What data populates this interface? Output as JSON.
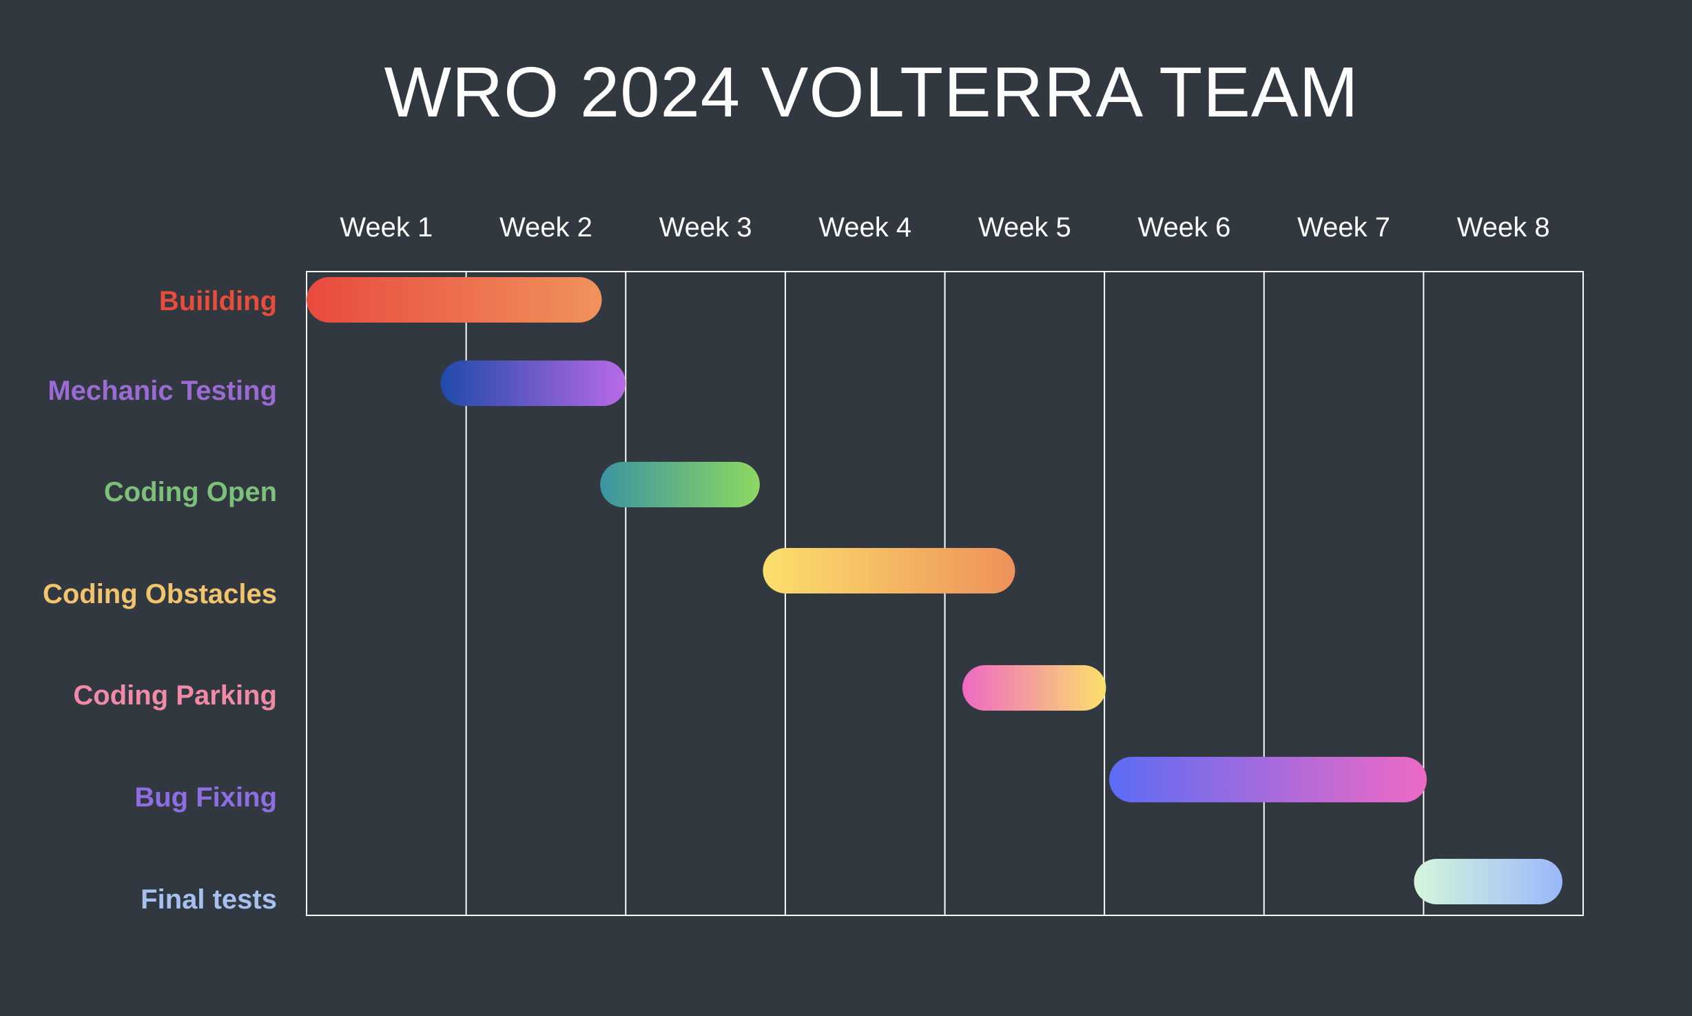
{
  "chart_data": {
    "type": "gantt",
    "title": "WRO 2024 VOLTERRA TEAM",
    "weeks": [
      "Week 1",
      "Week 2",
      "Week 3",
      "Week 4",
      "Week 5",
      "Week 6",
      "Week 7",
      "Week 8"
    ],
    "tasks": [
      {
        "label": "Buiilding",
        "start": 0.0,
        "end": 1.85,
        "color": "#e74c3c",
        "gradient": [
          "#e84a3e",
          "#f0925b"
        ]
      },
      {
        "label": "Mechanic Testing",
        "start": 0.84,
        "end": 2.0,
        "color": "#9b6bd4",
        "gradient": [
          "#1f4aab",
          "#b86ae6"
        ]
      },
      {
        "label": "Coding Open",
        "start": 1.84,
        "end": 2.84,
        "color": "#7dc07a",
        "gradient": [
          "#3b94a0",
          "#8ed862"
        ]
      },
      {
        "label": "Coding Obstacles",
        "start": 2.86,
        "end": 4.44,
        "color": "#f2c46e",
        "gradient": [
          "#fbe06c",
          "#ee915a"
        ]
      },
      {
        "label": "Coding Parking",
        "start": 4.11,
        "end": 5.01,
        "color": "#f08aa6",
        "gradient": [
          "#ee69c4",
          "#fbe06c"
        ]
      },
      {
        "label": "Bug Fixing",
        "start": 5.03,
        "end": 7.02,
        "color": "#8e6ee3",
        "gradient": [
          "#5c6cf4",
          "#ee69c4"
        ]
      },
      {
        "label": "Final tests",
        "start": 6.94,
        "end": 7.87,
        "color": "#a6c0f0",
        "gradient": [
          "#d6f6dc",
          "#9ab8fa"
        ]
      }
    ],
    "grid": true,
    "colors": {
      "background": "#323840",
      "grid": "#ffffff",
      "text": "#ffffff"
    }
  }
}
